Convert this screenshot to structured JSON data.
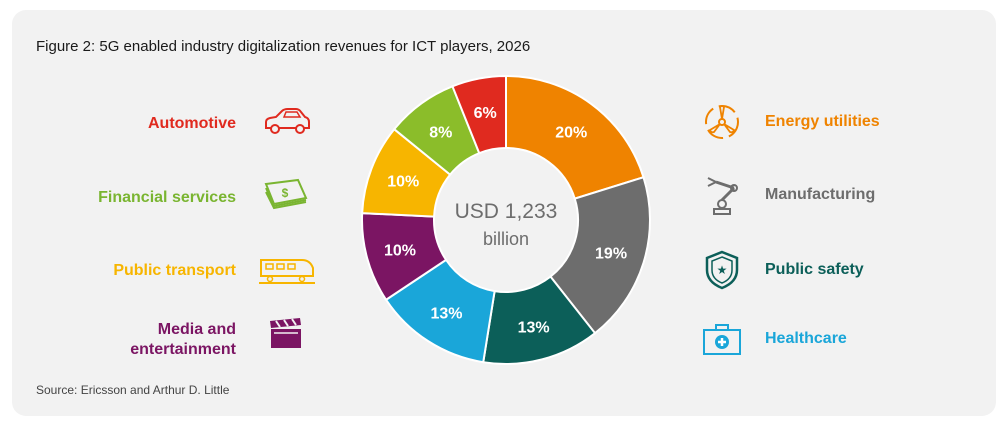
{
  "title": "Figure 2: 5G enabled industry digitalization revenues for ICT players, 2026",
  "source": "Source: Ericsson and Arthur D. Little",
  "center": {
    "line1": "USD 1,233",
    "line2": "billion"
  },
  "left_labels": [
    {
      "text": "Automotive",
      "color": "#e02a1f",
      "icon": "car-icon"
    },
    {
      "text": "Financial services",
      "color": "#7ab531",
      "icon": "money-stack-icon"
    },
    {
      "text": "Public transport",
      "color": "#f7b500",
      "icon": "train-icon"
    },
    {
      "text": "Media and\nentertainment",
      "color": "#7b1563",
      "icon": "clapperboard-icon"
    }
  ],
  "right_labels": [
    {
      "text": "Energy utilities",
      "color": "#ef8300",
      "icon": "wind-turbine-icon"
    },
    {
      "text": "Manufacturing",
      "color": "#6d6d6d",
      "icon": "robot-arm-icon"
    },
    {
      "text": "Public safety",
      "color": "#0c5f59",
      "icon": "shield-icon"
    },
    {
      "text": "Healthcare",
      "color": "#1aa6d9",
      "icon": "medical-kit-icon"
    }
  ],
  "chart_data": {
    "type": "pie",
    "title": "Figure 2: 5G enabled industry digitalization revenues for ICT players, 2026",
    "total_label": "USD 1,233 billion",
    "categories": [
      "Energy utilities",
      "Manufacturing",
      "Public safety",
      "Healthcare",
      "Media and entertainment",
      "Public transport",
      "Financial services",
      "Automotive"
    ],
    "values": [
      20,
      19,
      13,
      13,
      10,
      10,
      8,
      6
    ],
    "value_labels": [
      "20%",
      "19%",
      "13%",
      "13%",
      "10%",
      "10%",
      "8%",
      "6%"
    ],
    "colors": [
      "#ef8300",
      "#6d6d6d",
      "#0c5f59",
      "#1aa6d9",
      "#7b1563",
      "#f7b500",
      "#8bbd2a",
      "#e02a1f"
    ],
    "unit": "%"
  }
}
